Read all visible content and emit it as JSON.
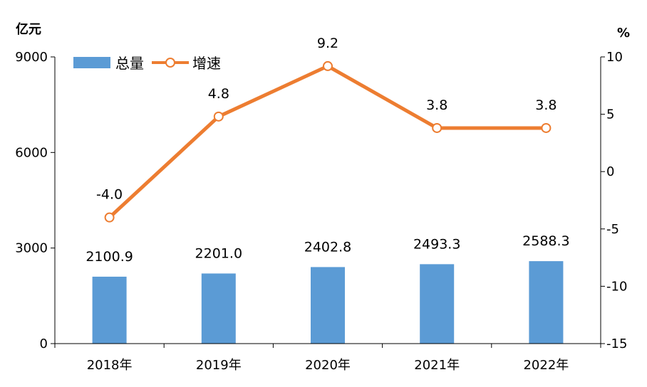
{
  "chart_data": {
    "type": "bar+line",
    "categories": [
      "2018年",
      "2019年",
      "2020年",
      "2021年",
      "2022年"
    ],
    "series": [
      {
        "name": "总量",
        "type": "bar",
        "axis": "left",
        "color": "#5B9BD5",
        "values": [
          2100.9,
          2201.0,
          2402.8,
          2493.3,
          2588.3
        ],
        "labels": [
          "2100.9",
          "2201.0",
          "2402.8",
          "2493.3",
          "2588.3"
        ]
      },
      {
        "name": "增速",
        "type": "line",
        "axis": "right",
        "color": "#ED7D31",
        "values": [
          -4.0,
          4.8,
          9.2,
          3.8,
          3.8
        ],
        "labels": [
          "-4.0",
          "4.8",
          "9.2",
          "3.8",
          "3.8"
        ]
      }
    ],
    "y_left": {
      "unit": "亿元",
      "ylim": [
        0,
        9000
      ],
      "ticks": [
        0,
        3000,
        6000,
        9000
      ],
      "tick_labels": [
        "0",
        "3000",
        "6000",
        "9000"
      ]
    },
    "y_right": {
      "unit": "%",
      "ylim": [
        -15,
        10
      ],
      "ticks": [
        -15,
        -10,
        -5,
        0,
        5,
        10
      ],
      "tick_labels": [
        "-15",
        "-10",
        "-5",
        "0",
        "5",
        "10"
      ]
    },
    "legend": {
      "placement": "top-left",
      "entries": [
        "总量",
        "增速"
      ]
    },
    "grid": false
  }
}
